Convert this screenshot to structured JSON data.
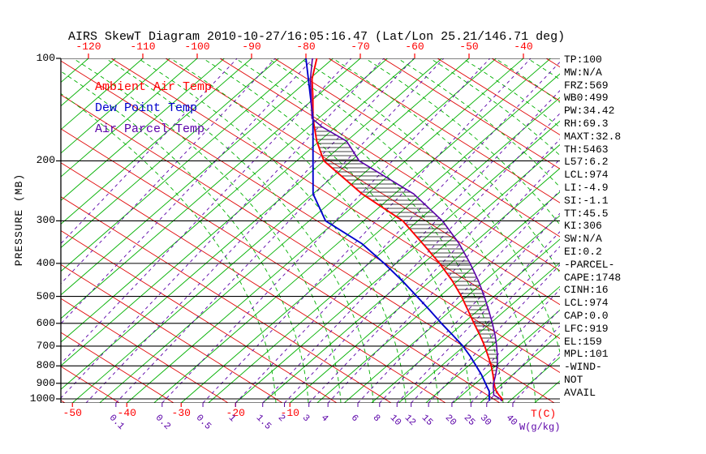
{
  "title": "AIRS SkewT Diagram 2010-10-27/16:05:16.47 (Lat/Lon 25.21/146.71 deg)",
  "legend": [
    {
      "label": "Ambient Air Temp",
      "color": "#ff0000"
    },
    {
      "label": "Dew Point Temp",
      "color": "#0000cc"
    },
    {
      "label": "Air Parcel Temp",
      "color": "#5a00a8"
    }
  ],
  "axes": {
    "pressure_label": "PRESSURE (MB)",
    "pressure_ticks": [
      100,
      200,
      300,
      400,
      500,
      600,
      700,
      800,
      900,
      1000
    ],
    "top_temp_ticks": [
      -120,
      -110,
      -100,
      -90,
      -80,
      -70,
      -60,
      -50,
      -40
    ],
    "bottom_temp_ticks": [
      -50,
      -40,
      -30,
      -20,
      -10
    ],
    "temp_unit_label": "T(C)",
    "mixing_unit_label": "W(g/kg)",
    "mixing_ratio_ticks": [
      {
        "label": "0.1",
        "td": -42
      },
      {
        "label": "0.2",
        "td": -33.5
      },
      {
        "label": "0.5",
        "td": -26
      },
      {
        "label": "1",
        "td": -20
      },
      {
        "label": "1.5",
        "td": -15
      },
      {
        "label": "2",
        "td": -11
      },
      {
        "label": "3",
        "td": -6.5
      },
      {
        "label": "4",
        "td": -3
      },
      {
        "label": "6",
        "td": 2.5
      },
      {
        "label": "8",
        "td": 6.5
      },
      {
        "label": "10",
        "td": 9.7
      },
      {
        "label": "12",
        "td": 12.3
      },
      {
        "label": "15",
        "td": 15.5
      },
      {
        "label": "20",
        "td": 19.8
      },
      {
        "label": "25",
        "td": 23.3
      },
      {
        "label": "30",
        "td": 26.2
      },
      {
        "label": "40",
        "td": 31
      }
    ]
  },
  "chart_data": {
    "type": "line",
    "variant": "skewt-logp",
    "title": "AIRS SkewT Diagram 2010-10-27/16:05:16.47 (Lat/Lon 25.21/146.71 deg)",
    "xlabel": "T(C)",
    "ylabel": "PRESSURE (MB)",
    "y_scale": "log",
    "ylim": [
      1030,
      100
    ],
    "grid": {
      "isotherm_step_C": 5,
      "isotherm_color": "#00b000",
      "dry_adiabat_color": "#e00000",
      "moist_adiabat_color": "#00b000",
      "mixing_ratio_color": "#5a00a8",
      "pressure_line_color": "#000000"
    },
    "series": [
      {
        "name": "Ambient Air Temp",
        "color": "#ff0000",
        "points_p_t": [
          [
            1015,
            28.6
          ],
          [
            1000,
            28.2
          ],
          [
            975,
            26.8
          ],
          [
            950,
            25.5
          ],
          [
            925,
            24.4
          ],
          [
            900,
            23.4
          ],
          [
            850,
            21.4
          ],
          [
            800,
            19.2
          ],
          [
            750,
            16.6
          ],
          [
            700,
            13.8
          ],
          [
            650,
            10.6
          ],
          [
            600,
            7.0
          ],
          [
            550,
            3.2
          ],
          [
            500,
            -1.0
          ],
          [
            450,
            -6.0
          ],
          [
            400,
            -12.0
          ],
          [
            350,
            -19.3
          ],
          [
            300,
            -27.8
          ],
          [
            250,
            -41.0
          ],
          [
            200,
            -55.0
          ],
          [
            175,
            -60.5
          ],
          [
            150,
            -66.0
          ],
          [
            130,
            -70.5
          ],
          [
            115,
            -74.5
          ],
          [
            100,
            -78.0
          ]
        ]
      },
      {
        "name": "Dew Point Temp",
        "color": "#0000cc",
        "points_p_t": [
          [
            1013,
            26.3
          ],
          [
            1000,
            25.8
          ],
          [
            975,
            25.0
          ],
          [
            950,
            24.2
          ],
          [
            925,
            23.0
          ],
          [
            900,
            21.8
          ],
          [
            850,
            19.3
          ],
          [
            800,
            16.4
          ],
          [
            750,
            13.3
          ],
          [
            700,
            9.8
          ],
          [
            650,
            5.6
          ],
          [
            600,
            1.0
          ],
          [
            550,
            -3.8
          ],
          [
            500,
            -9.2
          ],
          [
            450,
            -15.2
          ],
          [
            400,
            -22.2
          ],
          [
            350,
            -30.5
          ],
          [
            300,
            -42.0
          ],
          [
            250,
            -50.0
          ],
          [
            200,
            -57.0
          ],
          [
            150,
            -66.0
          ],
          [
            100,
            -80.0
          ]
        ]
      },
      {
        "name": "Air Parcel Temp",
        "color": "#5a00a8",
        "points_p_t": [
          [
            1015,
            28.6
          ],
          [
            1000,
            27.8
          ],
          [
            974,
            25.8
          ],
          [
            950,
            25.0
          ],
          [
            925,
            24.1
          ],
          [
            900,
            23.3
          ],
          [
            850,
            21.9
          ],
          [
            800,
            20.3
          ],
          [
            750,
            18.3
          ],
          [
            700,
            16.0
          ],
          [
            650,
            13.4
          ],
          [
            600,
            10.4
          ],
          [
            550,
            7.0
          ],
          [
            500,
            3.2
          ],
          [
            450,
            -1.2
          ],
          [
            400,
            -6.4
          ],
          [
            350,
            -12.6
          ],
          [
            300,
            -20.5
          ],
          [
            250,
            -31.5
          ],
          [
            200,
            -48.5
          ],
          [
            175,
            -55.0
          ],
          [
            159,
            -62.5
          ],
          [
            150,
            -66.2
          ],
          [
            130,
            -70.8
          ],
          [
            115,
            -74.8
          ],
          [
            100,
            -78.8
          ]
        ]
      }
    ],
    "cape_hatch": {
      "between": [
        "Ambient Air Temp",
        "Air Parcel Temp"
      ],
      "pressure_range": [
        159,
        919
      ]
    }
  },
  "stats": [
    "TP:100",
    "MW:N/A",
    "FRZ:569",
    "WB0:499",
    "PW:34.42",
    "RH:69.3",
    "MAXT:32.8",
    "TH:5463",
    "L57:6.2",
    "LCL:974",
    "LI:-4.9",
    "SI:-1.1",
    "TT:45.5",
    "KI:306",
    "SW:N/A",
    "EI:0.2",
    "-PARCEL-",
    "CAPE:1748",
    "CINH:16",
    "LCL:974",
    "CAP:0.0",
    "LFC:919",
    "EL:159",
    "MPL:101",
    "-WIND-",
    "NOT",
    "AVAIL"
  ]
}
